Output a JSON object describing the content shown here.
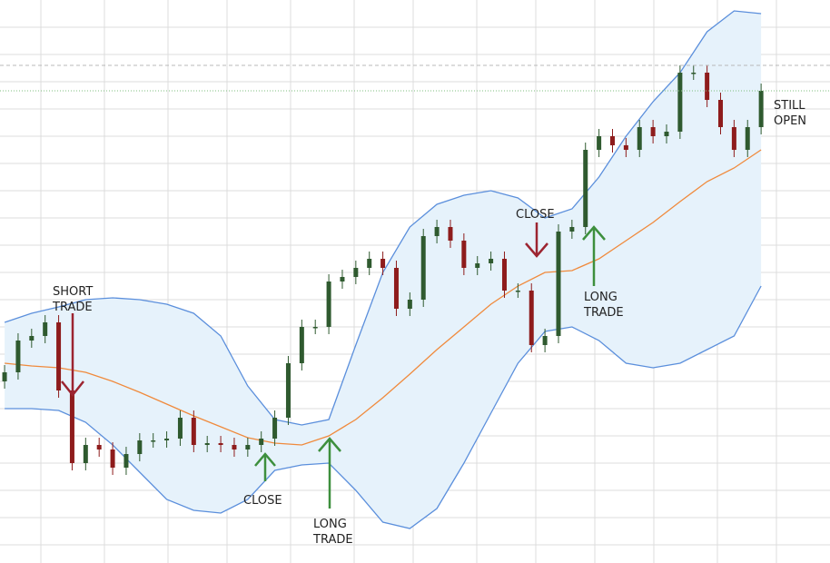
{
  "chart_data": {
    "type": "candlestick",
    "xlim": [
      -0.34,
      61.1
    ],
    "ylim": [
      0,
      620
    ],
    "up_color": "#2f5a2f",
    "down_color": "#8e1c1c",
    "x": [
      0,
      1,
      2,
      3,
      4,
      5,
      6,
      7,
      8,
      9,
      10,
      11,
      12,
      13,
      14,
      15,
      16,
      17,
      18,
      19,
      20,
      21,
      22,
      23,
      24,
      25,
      26,
      27,
      28,
      29,
      30,
      31,
      32,
      33,
      34,
      35,
      36,
      37,
      38,
      39,
      40,
      41,
      42,
      43,
      44,
      45,
      46,
      47,
      48,
      49,
      50,
      51,
      52,
      53,
      54,
      55,
      56
    ],
    "open": [
      200,
      210,
      245,
      250,
      265,
      190,
      110,
      130,
      125,
      105,
      120,
      135,
      135,
      137,
      160,
      130,
      132,
      130,
      125,
      130,
      137,
      160,
      220,
      260,
      260,
      310,
      315,
      325,
      335,
      325,
      280,
      290,
      360,
      370,
      355,
      325,
      330,
      335,
      300,
      300,
      240,
      250,
      365,
      370,
      455,
      470,
      460,
      455,
      480,
      470,
      475,
      540,
      540,
      510,
      480,
      455,
      480
    ],
    "high": [
      218,
      253,
      258,
      273,
      273,
      198,
      138,
      138,
      133,
      128,
      143,
      143,
      145,
      168,
      168,
      140,
      140,
      138,
      138,
      145,
      168,
      228,
      268,
      268,
      318,
      323,
      333,
      343,
      343,
      333,
      298,
      368,
      378,
      378,
      363,
      338,
      343,
      343,
      308,
      308,
      258,
      373,
      378,
      463,
      478,
      478,
      468,
      488,
      488,
      483,
      548,
      548,
      548,
      518,
      488,
      488,
      528
    ],
    "low": [
      192,
      202,
      237,
      242,
      182,
      102,
      102,
      117,
      97,
      97,
      112,
      127,
      127,
      129,
      122,
      122,
      122,
      117,
      117,
      122,
      129,
      152,
      212,
      252,
      252,
      302,
      307,
      317,
      317,
      272,
      272,
      282,
      352,
      347,
      317,
      317,
      322,
      292,
      292,
      232,
      232,
      242,
      357,
      362,
      447,
      452,
      447,
      447,
      462,
      462,
      467,
      532,
      502,
      472,
      447,
      447,
      472
    ],
    "close": [
      210,
      245,
      250,
      265,
      190,
      110,
      130,
      125,
      105,
      120,
      135,
      135,
      137,
      160,
      130,
      132,
      130,
      125,
      130,
      137,
      160,
      220,
      260,
      260,
      310,
      315,
      325,
      335,
      325,
      280,
      290,
      360,
      370,
      355,
      325,
      330,
      335,
      300,
      300,
      240,
      250,
      365,
      370,
      455,
      470,
      460,
      455,
      480,
      470,
      475,
      540,
      540,
      510,
      480,
      455,
      480,
      520
    ],
    "bands": {
      "x": [
        0,
        2,
        4,
        6,
        8,
        10,
        12,
        14,
        16,
        18,
        20,
        22,
        24,
        26,
        28,
        30,
        32,
        34,
        36,
        38,
        40,
        42,
        44,
        46,
        48,
        50,
        52,
        54,
        56
      ],
      "upper": [
        265,
        275,
        282,
        290,
        292,
        290,
        285,
        275,
        250,
        195,
        158,
        152,
        158,
        240,
        320,
        370,
        395,
        405,
        410,
        402,
        380,
        390,
        425,
        470,
        508,
        540,
        585,
        608,
        605
      ],
      "middle": [
        220,
        217,
        215,
        210,
        200,
        188,
        175,
        162,
        150,
        138,
        132,
        130,
        140,
        158,
        182,
        208,
        235,
        260,
        285,
        305,
        320,
        322,
        335,
        355,
        375,
        398,
        420,
        435,
        455
      ],
      "lower": [
        170,
        170,
        168,
        155,
        130,
        100,
        70,
        58,
        55,
        70,
        102,
        108,
        110,
        80,
        45,
        38,
        60,
        110,
        165,
        220,
        255,
        260,
        245,
        220,
        215,
        220,
        235,
        250,
        305
      ],
      "band_color": "#5b8fdc",
      "fill_color": "#e6f2fb",
      "middle_color": "#f08a3c"
    },
    "annotations": [
      {
        "lines": [
          "SHORT",
          "TRADE"
        ]
      },
      {
        "lines": [
          "CLOSE"
        ]
      },
      {
        "lines": [
          "LONG",
          "TRADE"
        ]
      },
      {
        "lines": [
          "CLOSE"
        ]
      },
      {
        "lines": [
          "LONG",
          "TRADE"
        ]
      },
      {
        "lines": [
          "STILL",
          "OPEN"
        ]
      }
    ]
  }
}
